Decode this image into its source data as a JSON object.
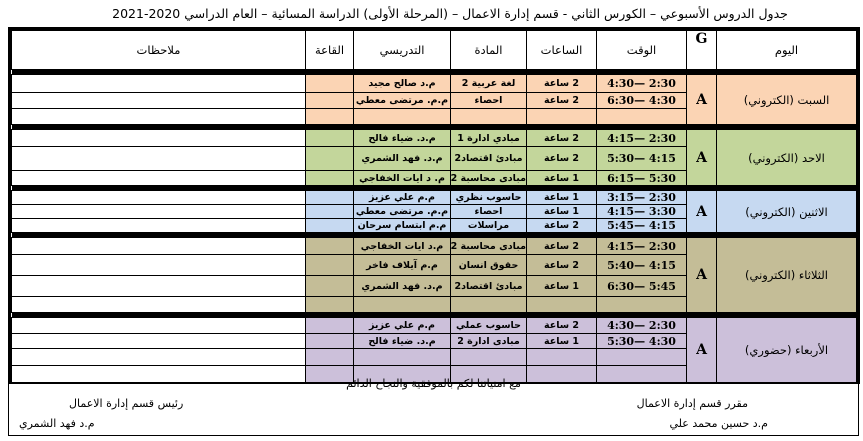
{
  "title": "جدول الدروس الأسبوعي – الكورس الثاني - قسم إدارة الاعمال – (المرحلة الأولى) الدراسة المسائية – العام الدراسي 2020-2021",
  "headers": {
    "day": "اليوم",
    "group": "G",
    "time": "الوقت",
    "hours": "الساعات",
    "subject": "المادة",
    "teacher": "التدريسي",
    "room": "القاعة",
    "notes": "ملاحظات"
  },
  "colors": {
    "sat": "#fbd4b4",
    "sun": "#c3d69b",
    "mon": "#c6d9f1",
    "tue": "#c4bd97",
    "wed": "#ccc0da"
  },
  "days": [
    {
      "day": "السبت (الكتروني)",
      "group": "A",
      "rows": [
        {
          "time": "4:30— 2:30",
          "hours": "2 ساعة",
          "subject": "لغة عربية 2",
          "teacher": "م.د صالح مجيد"
        },
        {
          "time": "6:30— 4:30",
          "hours": "2 ساعة",
          "subject": "احصاء",
          "teacher": "م.م. مرتضى معطي"
        },
        {
          "time": "",
          "hours": "",
          "subject": "",
          "teacher": ""
        }
      ]
    },
    {
      "day": "الاحد (الكتروني)",
      "group": "A",
      "rows": [
        {
          "time": "4:15— 2:30",
          "hours": "2 ساعة",
          "subject": "مبادي ادارة 1",
          "teacher": "م.د. ضياء فالح"
        },
        {
          "time": "5:30— 4:15",
          "hours": "2 ساعة",
          "subject": "مبادئ اقتصاد2",
          "teacher": "م.د. فهد الشمري"
        },
        {
          "time": "6:15— 5:30",
          "hours": "1 ساعة",
          "subject": "مبادى محاسبة 2",
          "teacher": "م. د ايات الخفاجي"
        }
      ]
    },
    {
      "day": "الاثنين (الكتروني)",
      "group": "A",
      "rows": [
        {
          "time": "3:15— 2:30",
          "hours": "1 ساعة",
          "subject": "حاسوب نظري",
          "teacher": "م.م علي عزيز"
        },
        {
          "time": "4:15— 3:30",
          "hours": "1 ساعة",
          "subject": "احصاء",
          "teacher": "م.م. مرتضى معطي"
        },
        {
          "time": "5:45— 4:15",
          "hours": "2 ساعة",
          "subject": "مراسلات",
          "teacher": "م.م ابتسام سرحان"
        }
      ]
    },
    {
      "day": "الثلاثاء (الكتروني)",
      "group": "A",
      "rows": [
        {
          "time": "4:15— 2:30",
          "hours": "2 ساعة",
          "subject": "مبادى محاسبة 2",
          "teacher": "م.د ايات الخفاجي"
        },
        {
          "time": "5:40— 4:15",
          "hours": "2 ساعة",
          "subject": "حقوق انسان",
          "teacher": "م.م آيلاف فاخر"
        },
        {
          "time": "6:30— 5:45",
          "hours": "1 ساعة",
          "subject": "مبادئ اقتصاد2",
          "teacher": "م.د. فهد الشمري"
        },
        {
          "time": "",
          "hours": "",
          "subject": "",
          "teacher": ""
        }
      ]
    },
    {
      "day": "الأربعاء (حضوري)",
      "group": "A",
      "rows": [
        {
          "time": "4:30— 2:30",
          "hours": "2 ساعة",
          "subject": "حاسوب عملي",
          "teacher": "م.م علي عزيز"
        },
        {
          "time": "5:30— 4:30",
          "hours": "1 ساعة",
          "subject": "مبادى ادارة 2",
          "teacher": "م.د. ضياء فالح"
        },
        {
          "time": "",
          "hours": "",
          "subject": "",
          "teacher": ""
        },
        {
          "time": "",
          "hours": "",
          "subject": "",
          "teacher": ""
        }
      ]
    }
  ],
  "footer": {
    "wish": "مع امنياتنا لكم بالموفقية والنجاح الدائم",
    "rapporteur_title": "مقرر قسم إدارة الاعمال",
    "rapporteur_name": "م.د حسين محمد علي",
    "head_title": "رئيس قسم إدارة الاعمال",
    "head_name": "م.د فهد الشمري"
  }
}
